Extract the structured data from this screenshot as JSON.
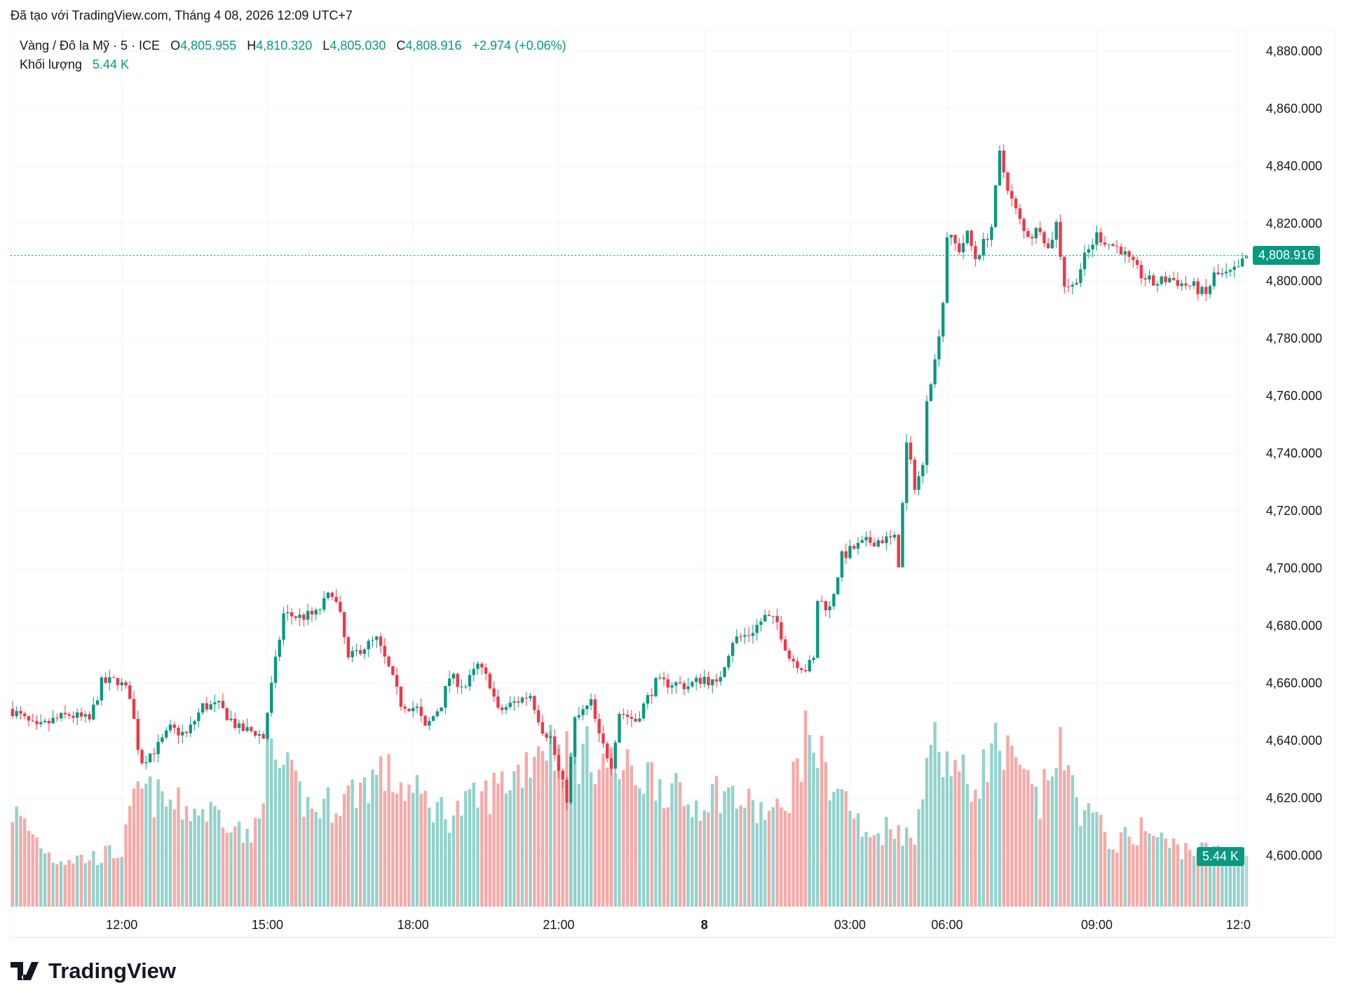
{
  "caption": "Đã tạo với TradingView.com, Tháng 4 08, 2026 12:09 UTC+7",
  "legend": {
    "symbol": "Vàng / Đô la Mỹ · 5 · ICE",
    "o_label": "O",
    "o": "4,805.955",
    "h_label": "H",
    "h": "4,810.320",
    "l_label": "L",
    "l": "4,805.030",
    "c_label": "C",
    "c": "4,808.916",
    "change": "+2.974 (+0.06%)",
    "volume_label": "Khối lượng",
    "volume": "5.44 K"
  },
  "last_price_tag": "4,808.916",
  "volume_tag": "5.44 K",
  "brand": "TradingView",
  "colors": {
    "up": "#089981",
    "down": "#f23645",
    "up_volume": "#92d2cc",
    "down_volume": "#f7a9a7",
    "grid": "#f0f3fa"
  },
  "chart_data": {
    "type": "candlestick",
    "interval": "5",
    "bar_count": 306,
    "ylim": [
      4590,
      4885
    ],
    "y_ticks": [
      4880,
      4860,
      4840,
      4820,
      4800,
      4780,
      4760,
      4740,
      4720,
      4700,
      4680,
      4660,
      4640,
      4620,
      4600
    ],
    "y_tick_labels": [
      "4,880.000",
      "4,860.000",
      "4,840.000",
      "4,820.000",
      "4,800.000",
      "4,780.000",
      "4,760.000",
      "4,740.000",
      "4,720.000",
      "4,700.000",
      "4,680.000",
      "4,660.000",
      "4,640.000",
      "4,620.000",
      "4,600.000"
    ],
    "x_ticks": [
      {
        "bar": 27,
        "label": "12:00"
      },
      {
        "bar": 63,
        "label": "15:00"
      },
      {
        "bar": 99,
        "label": "18:00"
      },
      {
        "bar": 135,
        "label": "21:00"
      },
      {
        "bar": 171,
        "label": "8",
        "bold": true
      },
      {
        "bar": 207,
        "label": "03:00"
      },
      {
        "bar": 231,
        "label": "06:00"
      },
      {
        "bar": 268,
        "label": "09:00"
      },
      {
        "bar": 303,
        "label": "12:0"
      }
    ],
    "last_close": 4808.916,
    "close_path": [
      [
        0,
        4650.5
      ],
      [
        6,
        4644
      ],
      [
        10,
        4647
      ],
      [
        14,
        4649
      ],
      [
        19,
        4647
      ],
      [
        22,
        4660
      ],
      [
        26,
        4661
      ],
      [
        29,
        4656
      ],
      [
        31,
        4638
      ],
      [
        32,
        4633
      ],
      [
        36,
        4638
      ],
      [
        39,
        4644
      ],
      [
        43,
        4642
      ],
      [
        47,
        4652
      ],
      [
        51,
        4652
      ],
      [
        56,
        4644
      ],
      [
        60,
        4643
      ],
      [
        62,
        4641
      ],
      [
        64,
        4659
      ],
      [
        67,
        4684
      ],
      [
        71,
        4683
      ],
      [
        75,
        4684
      ],
      [
        79,
        4692
      ],
      [
        81,
        4683
      ],
      [
        83,
        4668
      ],
      [
        86,
        4672
      ],
      [
        90,
        4675
      ],
      [
        93,
        4665
      ],
      [
        96,
        4653
      ],
      [
        100,
        4651
      ],
      [
        102,
        4644
      ],
      [
        106,
        4653
      ],
      [
        108,
        4662
      ],
      [
        112,
        4659
      ],
      [
        115,
        4666
      ],
      [
        118,
        4660
      ],
      [
        120,
        4650
      ],
      [
        125,
        4654
      ],
      [
        128,
        4656
      ],
      [
        131,
        4644
      ],
      [
        133,
        4641
      ],
      [
        135,
        4629
      ],
      [
        137,
        4620
      ],
      [
        139,
        4647
      ],
      [
        143,
        4653
      ],
      [
        145,
        4641
      ],
      [
        148,
        4632
      ],
      [
        150,
        4650
      ],
      [
        154,
        4647
      ],
      [
        159,
        4660
      ],
      [
        163,
        4660
      ],
      [
        167,
        4659
      ],
      [
        171,
        4662
      ],
      [
        174,
        4659
      ],
      [
        178,
        4675
      ],
      [
        182,
        4677
      ],
      [
        186,
        4683
      ],
      [
        189,
        4681
      ],
      [
        192,
        4669
      ],
      [
        196,
        4665
      ],
      [
        198,
        4668
      ],
      [
        199,
        4689
      ],
      [
        202,
        4686
      ],
      [
        205,
        4704
      ],
      [
        208,
        4707
      ],
      [
        211,
        4709
      ],
      [
        215,
        4710
      ],
      [
        218,
        4710
      ],
      [
        219,
        4702
      ],
      [
        220,
        4722
      ],
      [
        221,
        4743
      ],
      [
        223,
        4729
      ],
      [
        225,
        4735
      ],
      [
        226,
        4760
      ],
      [
        228,
        4772
      ],
      [
        230,
        4793
      ],
      [
        231,
        4816
      ],
      [
        234,
        4811
      ],
      [
        236,
        4816
      ],
      [
        238,
        4808
      ],
      [
        240,
        4813
      ],
      [
        242,
        4819
      ],
      [
        244,
        4844
      ],
      [
        245,
        4838
      ],
      [
        247,
        4828
      ],
      [
        250,
        4817
      ],
      [
        252,
        4816
      ],
      [
        254,
        4819
      ],
      [
        256,
        4811
      ],
      [
        258,
        4820
      ],
      [
        260,
        4799
      ],
      [
        262,
        4798
      ],
      [
        265,
        4808
      ],
      [
        268,
        4816
      ],
      [
        271,
        4813
      ],
      [
        274,
        4811
      ],
      [
        276,
        4807
      ],
      [
        279,
        4802
      ],
      [
        282,
        4799
      ],
      [
        286,
        4801
      ],
      [
        289,
        4799
      ],
      [
        292,
        4798
      ],
      [
        295,
        4795
      ],
      [
        297,
        4802
      ],
      [
        300,
        4802
      ],
      [
        303,
        4804
      ],
      [
        305,
        4808.916
      ]
    ],
    "volume_unit": "K",
    "volume_path": [
      [
        0,
        10.3
      ],
      [
        10,
        5.2
      ],
      [
        19,
        5.2
      ],
      [
        27,
        6
      ],
      [
        31,
        12.6
      ],
      [
        40,
        10.8
      ],
      [
        53,
        9.9
      ],
      [
        59,
        6.6
      ],
      [
        63,
        16.3
      ],
      [
        67,
        14.5
      ],
      [
        74,
        10.3
      ],
      [
        82,
        11.7
      ],
      [
        91,
        14.5
      ],
      [
        99,
        12.2
      ],
      [
        108,
        9.9
      ],
      [
        116,
        11.7
      ],
      [
        125,
        14.5
      ],
      [
        131,
        18.2
      ],
      [
        137,
        16.3
      ],
      [
        144,
        16.3
      ],
      [
        150,
        14.5
      ],
      [
        159,
        14
      ],
      [
        167,
        10.8
      ],
      [
        175,
        12.6
      ],
      [
        184,
        10.3
      ],
      [
        190,
        9.9
      ],
      [
        197,
        19.1
      ],
      [
        201,
        14.5
      ],
      [
        207,
        10.8
      ],
      [
        211,
        7.1
      ],
      [
        218,
        9
      ],
      [
        223,
        6.6
      ],
      [
        226,
        18.2
      ],
      [
        231,
        16.3
      ],
      [
        237,
        12.6
      ],
      [
        243,
        17.3
      ],
      [
        250,
        13.6
      ],
      [
        254,
        10.8
      ],
      [
        258,
        17.3
      ],
      [
        264,
        10.8
      ],
      [
        269,
        8.4
      ],
      [
        273,
        6.6
      ],
      [
        279,
        8.4
      ],
      [
        286,
        6.6
      ],
      [
        294,
        6
      ],
      [
        305,
        5.44
      ]
    ]
  }
}
